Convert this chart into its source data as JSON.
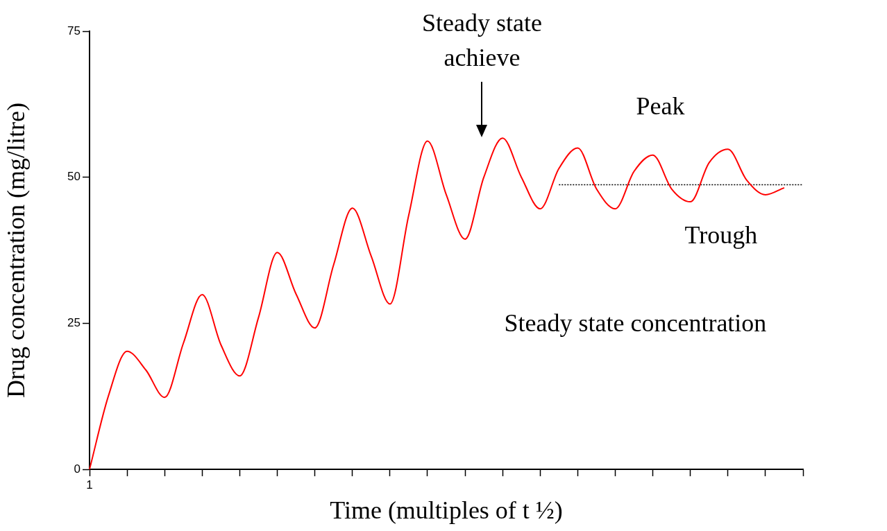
{
  "chart_data": {
    "type": "line",
    "xlabel": "Time (multiples of t ½)",
    "ylabel": "Drug concentration (mg/litre)",
    "categories": [
      "1",
      null,
      null,
      null,
      null,
      null,
      null,
      null,
      null,
      null,
      null,
      null,
      null,
      null,
      null,
      null,
      null,
      null,
      null,
      null,
      null,
      null,
      null,
      null,
      null,
      null,
      null,
      null,
      null,
      null,
      null,
      null,
      null,
      null,
      null,
      null,
      null,
      null,
      null
    ],
    "ylim": [
      0,
      75
    ],
    "yticks": [
      0,
      25,
      50,
      75
    ],
    "marker": "none",
    "series": [
      {
        "color": "#ff0000",
        "line_style": "solid",
        "values": [
          0,
          12.5,
          20.2,
          17,
          12.3,
          21.6,
          29.9,
          21.3,
          16,
          26,
          37.1,
          30,
          24.2,
          35,
          44.7,
          36.5,
          28.3,
          43.5,
          56.2,
          47,
          39.4,
          50,
          56.7,
          50,
          44.6,
          51.5,
          55,
          48,
          44.6,
          51,
          53.8,
          48,
          45.8,
          52.5,
          54.8,
          49.5,
          47,
          48.2,
          null
        ]
      },
      {
        "color": "#000000",
        "line_style": "dotted",
        "values": [
          null,
          null,
          null,
          null,
          null,
          null,
          null,
          null,
          null,
          null,
          null,
          null,
          null,
          null,
          null,
          null,
          null,
          null,
          null,
          null,
          null,
          null,
          null,
          null,
          null,
          48.7,
          48.7,
          48.7,
          48.7,
          48.7,
          48.7,
          48.7,
          48.7,
          48.7,
          48.7,
          48.7,
          48.7,
          48.7,
          48.7
        ]
      }
    ],
    "annotations": [
      "Steady state achieve",
      "Peak",
      "Trough",
      "Steady state concentration"
    ]
  }
}
